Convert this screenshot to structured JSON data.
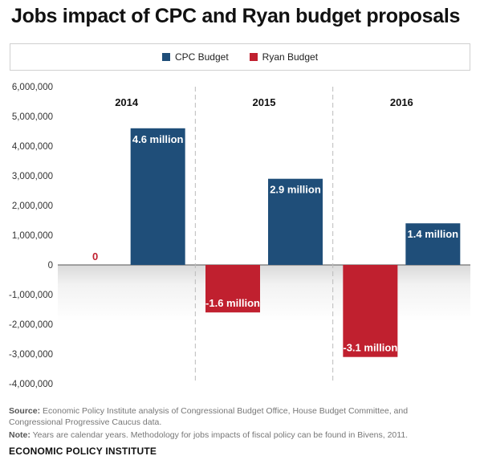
{
  "title": "Jobs impact of CPC and Ryan budget proposals",
  "legend": [
    {
      "label": "CPC Budget",
      "color": "#1f4e79"
    },
    {
      "label": "Ryan Budget",
      "color": "#c0202f"
    }
  ],
  "source_label": "Source:",
  "source_text": "Economic Policy Institute analysis of Congressional Budget Office, House Budget Committee, and Congressional Progressive Caucus data.",
  "note_label": "Note:",
  "note_text": "Years are calendar years. Methodology for jobs impacts of fiscal policy can be found in Bivens, 2011.",
  "footer": "ECONOMIC POLICY INSTITUTE",
  "chart_data": {
    "type": "bar",
    "categories": [
      "2014",
      "2015",
      "2016"
    ],
    "series": [
      {
        "name": "Ryan Budget",
        "color": "#c0202f",
        "values": [
          0,
          -1600000,
          -3100000
        ],
        "labels": [
          "0",
          "-1.6 million",
          "-3.1 million"
        ]
      },
      {
        "name": "CPC Budget",
        "color": "#1f4e79",
        "values": [
          4600000,
          2900000,
          1400000
        ],
        "labels": [
          "4.6 million",
          "2.9 million",
          "1.4 million"
        ]
      }
    ],
    "ylim": [
      -4000000,
      6000000
    ],
    "yticks": [
      6000000,
      5000000,
      4000000,
      3000000,
      2000000,
      1000000,
      0,
      -1000000,
      -2000000,
      -3000000,
      -4000000
    ],
    "ytick_labels": [
      "6,000,000",
      "5,000,000",
      "4,000,000",
      "3,000,000",
      "2,000,000",
      "1,000,000",
      "0",
      "-1,000,000",
      "-2,000,000",
      "-3,000,000",
      "-4,000,000"
    ],
    "xlabel": "",
    "ylabel": "",
    "legend_position": "top",
    "grid": false
  }
}
